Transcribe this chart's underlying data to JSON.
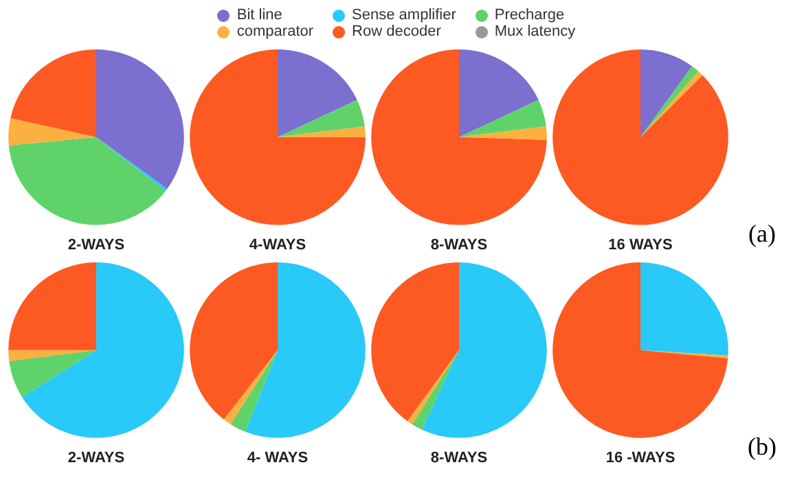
{
  "chart_data": [
    {
      "type": "pie",
      "title": "2-WAYS",
      "legend": "top",
      "categories": [
        "Bit line",
        "Sense amplifier",
        "Precharge",
        "comparator",
        "Row decoder",
        "Mux latency"
      ],
      "values": [
        35,
        0.5,
        38,
        5,
        21.5,
        0
      ],
      "colors": [
        "#7b6fd0",
        "#29c9f8",
        "#5fd36a",
        "#fbb040",
        "#fc5a22",
        "#999999"
      ]
    },
    {
      "type": "pie",
      "title": "4-WAYS",
      "categories": [
        null,
        null,
        null,
        null,
        null,
        null
      ],
      "values": [
        18,
        0,
        5,
        2,
        75,
        0
      ],
      "colors": [
        "#7b6fd0",
        "#29c9f8",
        "#5fd36a",
        "#fbb040",
        "#fc5a22",
        "#999999"
      ]
    },
    {
      "type": "pie",
      "title": "8-WAYS",
      "categories": [
        null,
        null,
        null,
        null,
        null,
        null
      ],
      "values": [
        18,
        0,
        5,
        2.5,
        74.5,
        0
      ],
      "colors": [
        "#7b6fd0",
        "#29c9f8",
        "#5fd36a",
        "#fbb040",
        "#fc5a22",
        "#999999"
      ]
    },
    {
      "type": "pie",
      "title": "16 WAYS",
      "annotations": [
        "(a)"
      ],
      "categories": [
        null,
        null,
        null,
        null,
        null,
        null
      ],
      "values": [
        10,
        0,
        1.5,
        1,
        87.5,
        0
      ],
      "colors": [
        "#7b6fd0",
        "#29c9f8",
        "#5fd36a",
        "#fbb040",
        "#fc5a22",
        "#999999"
      ]
    },
    {
      "type": "pie",
      "title": "2-WAYS",
      "categories": [
        null,
        null,
        null,
        null,
        null,
        null
      ],
      "values": [
        0,
        66,
        7,
        2,
        25,
        0
      ],
      "colors": [
        "#7b6fd0",
        "#29c9f8",
        "#5fd36a",
        "#fbb040",
        "#fc5a22",
        "#999999"
      ]
    },
    {
      "type": "pie",
      "title": "4- WAYS",
      "categories": [
        null,
        null,
        null,
        null,
        null,
        null
      ],
      "values": [
        0,
        56,
        3,
        1.5,
        39.5,
        0
      ],
      "colors": [
        "#7b6fd0",
        "#29c9f8",
        "#5fd36a",
        "#fbb040",
        "#fc5a22",
        "#999999"
      ]
    },
    {
      "type": "pie",
      "title": "8-WAYS",
      "categories": [
        null,
        null,
        null,
        null,
        null,
        null
      ],
      "values": [
        0,
        57,
        2,
        1,
        40,
        0
      ],
      "colors": [
        "#7b6fd0",
        "#29c9f8",
        "#5fd36a",
        "#fbb040",
        "#fc5a22",
        "#999999"
      ]
    },
    {
      "type": "pie",
      "title": "16 -WAYS",
      "annotations": [
        "(b)"
      ],
      "categories": [
        null,
        null,
        null,
        null,
        null,
        null
      ],
      "values": [
        0,
        26,
        0,
        0.5,
        73.5,
        0
      ],
      "colors": [
        "#7b6fd0",
        "#29c9f8",
        "#5fd36a",
        "#fbb040",
        "#fc5a22",
        "#999999"
      ]
    }
  ]
}
